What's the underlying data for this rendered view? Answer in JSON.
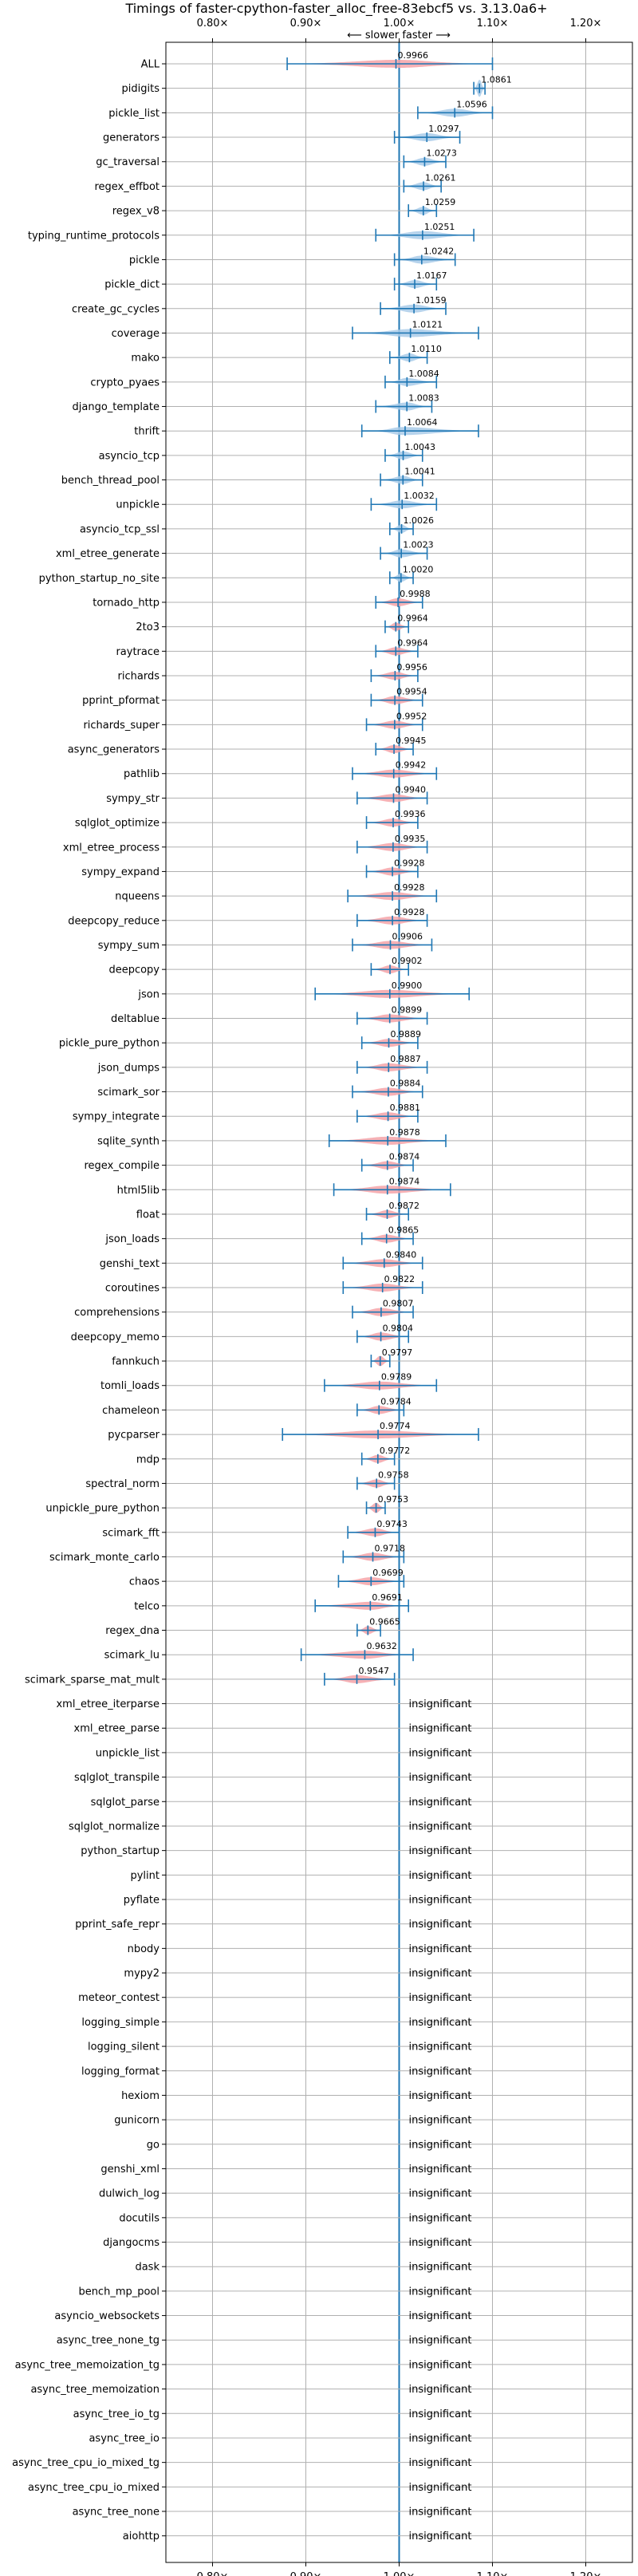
{
  "chart_data": {
    "type": "violin",
    "title": "Timings of faster-cpython-faster_alloc_free-83ebcf5 vs. 3.13.0a6+",
    "direction_label": "⟵ slower   faster ⟶",
    "xlim": [
      0.75,
      1.25
    ],
    "xticks": [
      0.8,
      0.9,
      1.0,
      1.1,
      1.2
    ],
    "xtick_labels": [
      "0.80×",
      "0.90×",
      "1.00×",
      "1.10×",
      "1.20×"
    ],
    "grid": true,
    "colors": {
      "faster": "#a9cbe9",
      "slower": "#f4a3a8",
      "line": "#1f77b4"
    },
    "insignificant_label": "insignificant",
    "benchmarks": [
      {
        "name": "ALL",
        "value": 0.9966,
        "min": 0.88,
        "max": 1.1,
        "label": "0.9966"
      },
      {
        "name": "pidigits",
        "value": 1.0861,
        "min": 1.08,
        "max": 1.092,
        "label": "1.0861"
      },
      {
        "name": "pickle_list",
        "value": 1.0596,
        "min": 1.02,
        "max": 1.1,
        "label": "1.0596"
      },
      {
        "name": "generators",
        "value": 1.0297,
        "min": 0.995,
        "max": 1.065,
        "label": "1.0297"
      },
      {
        "name": "gc_traversal",
        "value": 1.0273,
        "min": 1.005,
        "max": 1.05,
        "label": "1.0273"
      },
      {
        "name": "regex_effbot",
        "value": 1.0261,
        "min": 1.005,
        "max": 1.045,
        "label": "1.0261"
      },
      {
        "name": "regex_v8",
        "value": 1.0259,
        "min": 1.01,
        "max": 1.04,
        "label": "1.0259"
      },
      {
        "name": "typing_runtime_protocols",
        "value": 1.0251,
        "min": 0.975,
        "max": 1.08,
        "label": "1.0251"
      },
      {
        "name": "pickle",
        "value": 1.0242,
        "min": 0.995,
        "max": 1.06,
        "label": "1.0242"
      },
      {
        "name": "pickle_dict",
        "value": 1.0167,
        "min": 0.995,
        "max": 1.04,
        "label": "1.0167"
      },
      {
        "name": "create_gc_cycles",
        "value": 1.0159,
        "min": 0.98,
        "max": 1.05,
        "label": "1.0159"
      },
      {
        "name": "coverage",
        "value": 1.0121,
        "min": 0.95,
        "max": 1.085,
        "label": "1.0121"
      },
      {
        "name": "mako",
        "value": 1.011,
        "min": 0.99,
        "max": 1.03,
        "label": "1.0110"
      },
      {
        "name": "crypto_pyaes",
        "value": 1.0084,
        "min": 0.985,
        "max": 1.04,
        "label": "1.0084"
      },
      {
        "name": "django_template",
        "value": 1.0083,
        "min": 0.975,
        "max": 1.035,
        "label": "1.0083"
      },
      {
        "name": "thrift",
        "value": 1.0064,
        "min": 0.96,
        "max": 1.085,
        "label": "1.0064"
      },
      {
        "name": "asyncio_tcp",
        "value": 1.0043,
        "min": 0.985,
        "max": 1.025,
        "label": "1.0043"
      },
      {
        "name": "bench_thread_pool",
        "value": 1.0041,
        "min": 0.98,
        "max": 1.025,
        "label": "1.0041"
      },
      {
        "name": "unpickle",
        "value": 1.0032,
        "min": 0.97,
        "max": 1.04,
        "label": "1.0032"
      },
      {
        "name": "asyncio_tcp_ssl",
        "value": 1.0026,
        "min": 0.99,
        "max": 1.015,
        "label": "1.0026"
      },
      {
        "name": "xml_etree_generate",
        "value": 1.0023,
        "min": 0.98,
        "max": 1.03,
        "label": "1.0023"
      },
      {
        "name": "python_startup_no_site",
        "value": 1.002,
        "min": 0.99,
        "max": 1.015,
        "label": "1.0020"
      },
      {
        "name": "tornado_http",
        "value": 0.9988,
        "min": 0.975,
        "max": 1.025,
        "label": "0.9988"
      },
      {
        "name": "2to3",
        "value": 0.9964,
        "min": 0.985,
        "max": 1.01,
        "label": "0.9964"
      },
      {
        "name": "raytrace",
        "value": 0.9964,
        "min": 0.975,
        "max": 1.02,
        "label": "0.9964"
      },
      {
        "name": "richards",
        "value": 0.9956,
        "min": 0.97,
        "max": 1.02,
        "label": "0.9956"
      },
      {
        "name": "pprint_pformat",
        "value": 0.9954,
        "min": 0.97,
        "max": 1.025,
        "label": "0.9954"
      },
      {
        "name": "richards_super",
        "value": 0.9952,
        "min": 0.965,
        "max": 1.025,
        "label": "0.9952"
      },
      {
        "name": "async_generators",
        "value": 0.9945,
        "min": 0.975,
        "max": 1.015,
        "label": "0.9945"
      },
      {
        "name": "pathlib",
        "value": 0.9942,
        "min": 0.95,
        "max": 1.04,
        "label": "0.9942"
      },
      {
        "name": "sympy_str",
        "value": 0.994,
        "min": 0.955,
        "max": 1.03,
        "label": "0.9940"
      },
      {
        "name": "sqlglot_optimize",
        "value": 0.9936,
        "min": 0.965,
        "max": 1.02,
        "label": "0.9936"
      },
      {
        "name": "xml_etree_process",
        "value": 0.9935,
        "min": 0.955,
        "max": 1.03,
        "label": "0.9935"
      },
      {
        "name": "sympy_expand",
        "value": 0.9928,
        "min": 0.965,
        "max": 1.02,
        "label": "0.9928"
      },
      {
        "name": "nqueens",
        "value": 0.9928,
        "min": 0.945,
        "max": 1.04,
        "label": "0.9928"
      },
      {
        "name": "deepcopy_reduce",
        "value": 0.9928,
        "min": 0.955,
        "max": 1.03,
        "label": "0.9928"
      },
      {
        "name": "sympy_sum",
        "value": 0.9906,
        "min": 0.95,
        "max": 1.035,
        "label": "0.9906"
      },
      {
        "name": "deepcopy",
        "value": 0.9902,
        "min": 0.97,
        "max": 1.01,
        "label": "0.9902"
      },
      {
        "name": "json",
        "value": 0.99,
        "min": 0.91,
        "max": 1.075,
        "label": "0.9900"
      },
      {
        "name": "deltablue",
        "value": 0.9899,
        "min": 0.955,
        "max": 1.03,
        "label": "0.9899"
      },
      {
        "name": "pickle_pure_python",
        "value": 0.9889,
        "min": 0.96,
        "max": 1.02,
        "label": "0.9889"
      },
      {
        "name": "json_dumps",
        "value": 0.9887,
        "min": 0.955,
        "max": 1.03,
        "label": "0.9887"
      },
      {
        "name": "scimark_sor",
        "value": 0.9884,
        "min": 0.95,
        "max": 1.025,
        "label": "0.9884"
      },
      {
        "name": "sympy_integrate",
        "value": 0.9881,
        "min": 0.955,
        "max": 1.02,
        "label": "0.9881"
      },
      {
        "name": "sqlite_synth",
        "value": 0.9878,
        "min": 0.925,
        "max": 1.05,
        "label": "0.9878"
      },
      {
        "name": "regex_compile",
        "value": 0.9874,
        "min": 0.96,
        "max": 1.015,
        "label": "0.9874"
      },
      {
        "name": "html5lib",
        "value": 0.9874,
        "min": 0.93,
        "max": 1.055,
        "label": "0.9874"
      },
      {
        "name": "float",
        "value": 0.9872,
        "min": 0.965,
        "max": 1.01,
        "label": "0.9872"
      },
      {
        "name": "json_loads",
        "value": 0.9865,
        "min": 0.96,
        "max": 1.015,
        "label": "0.9865"
      },
      {
        "name": "genshi_text",
        "value": 0.984,
        "min": 0.94,
        "max": 1.025,
        "label": "0.9840"
      },
      {
        "name": "coroutines",
        "value": 0.9822,
        "min": 0.94,
        "max": 1.025,
        "label": "0.9822"
      },
      {
        "name": "comprehensions",
        "value": 0.9807,
        "min": 0.95,
        "max": 1.015,
        "label": "0.9807"
      },
      {
        "name": "deepcopy_memo",
        "value": 0.9804,
        "min": 0.955,
        "max": 1.01,
        "label": "0.9804"
      },
      {
        "name": "fannkuch",
        "value": 0.9797,
        "min": 0.97,
        "max": 0.99,
        "label": "0.9797"
      },
      {
        "name": "tomli_loads",
        "value": 0.9789,
        "min": 0.92,
        "max": 1.04,
        "label": "0.9789"
      },
      {
        "name": "chameleon",
        "value": 0.9784,
        "min": 0.955,
        "max": 1.005,
        "label": "0.9784"
      },
      {
        "name": "pycparser",
        "value": 0.9774,
        "min": 0.875,
        "max": 1.085,
        "label": "0.9774"
      },
      {
        "name": "mdp",
        "value": 0.9772,
        "min": 0.96,
        "max": 0.995,
        "label": "0.9772"
      },
      {
        "name": "spectral_norm",
        "value": 0.9758,
        "min": 0.955,
        "max": 0.995,
        "label": "0.9758"
      },
      {
        "name": "unpickle_pure_python",
        "value": 0.9753,
        "min": 0.965,
        "max": 0.985,
        "label": "0.9753"
      },
      {
        "name": "scimark_fft",
        "value": 0.9743,
        "min": 0.945,
        "max": 1.0,
        "label": "0.9743"
      },
      {
        "name": "scimark_monte_carlo",
        "value": 0.9718,
        "min": 0.94,
        "max": 1.005,
        "label": "0.9718"
      },
      {
        "name": "chaos",
        "value": 0.9699,
        "min": 0.935,
        "max": 1.005,
        "label": "0.9699"
      },
      {
        "name": "telco",
        "value": 0.9691,
        "min": 0.91,
        "max": 1.01,
        "label": "0.9691"
      },
      {
        "name": "regex_dna",
        "value": 0.9665,
        "min": 0.955,
        "max": 0.98,
        "label": "0.9665"
      },
      {
        "name": "scimark_lu",
        "value": 0.9632,
        "min": 0.895,
        "max": 1.015,
        "label": "0.9632"
      },
      {
        "name": "scimark_sparse_mat_mult",
        "value": 0.9547,
        "min": 0.92,
        "max": 0.995,
        "label": "0.9547"
      },
      {
        "name": "xml_etree_iterparse",
        "value": null
      },
      {
        "name": "xml_etree_parse",
        "value": null
      },
      {
        "name": "unpickle_list",
        "value": null
      },
      {
        "name": "sqlglot_transpile",
        "value": null
      },
      {
        "name": "sqlglot_parse",
        "value": null
      },
      {
        "name": "sqlglot_normalize",
        "value": null
      },
      {
        "name": "python_startup",
        "value": null
      },
      {
        "name": "pylint",
        "value": null
      },
      {
        "name": "pyflate",
        "value": null
      },
      {
        "name": "pprint_safe_repr",
        "value": null
      },
      {
        "name": "nbody",
        "value": null
      },
      {
        "name": "mypy2",
        "value": null
      },
      {
        "name": "meteor_contest",
        "value": null
      },
      {
        "name": "logging_simple",
        "value": null
      },
      {
        "name": "logging_silent",
        "value": null
      },
      {
        "name": "logging_format",
        "value": null
      },
      {
        "name": "hexiom",
        "value": null
      },
      {
        "name": "gunicorn",
        "value": null
      },
      {
        "name": "go",
        "value": null
      },
      {
        "name": "genshi_xml",
        "value": null
      },
      {
        "name": "dulwich_log",
        "value": null
      },
      {
        "name": "docutils",
        "value": null
      },
      {
        "name": "djangocms",
        "value": null
      },
      {
        "name": "dask",
        "value": null
      },
      {
        "name": "bench_mp_pool",
        "value": null
      },
      {
        "name": "asyncio_websockets",
        "value": null
      },
      {
        "name": "async_tree_none_tg",
        "value": null
      },
      {
        "name": "async_tree_memoization_tg",
        "value": null
      },
      {
        "name": "async_tree_memoization",
        "value": null
      },
      {
        "name": "async_tree_io_tg",
        "value": null
      },
      {
        "name": "async_tree_io",
        "value": null
      },
      {
        "name": "async_tree_cpu_io_mixed_tg",
        "value": null
      },
      {
        "name": "async_tree_cpu_io_mixed",
        "value": null
      },
      {
        "name": "async_tree_none",
        "value": null
      },
      {
        "name": "aiohttp",
        "value": null
      }
    ]
  }
}
